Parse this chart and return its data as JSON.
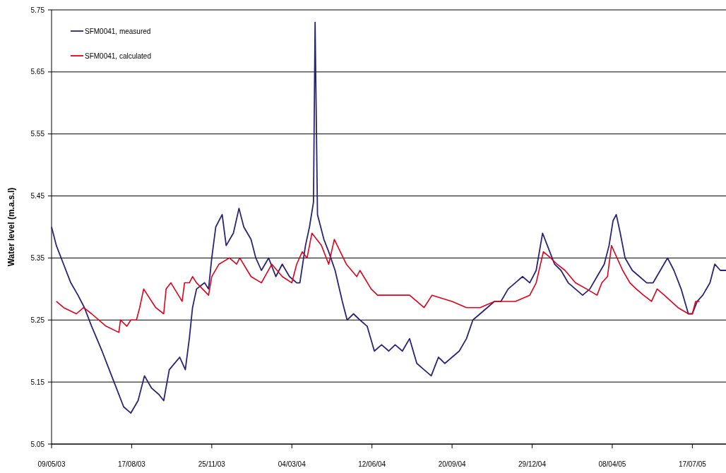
{
  "chart_data": {
    "type": "line",
    "ylabel": "Water level (m.a.s.l)",
    "xlim": [
      "2003-05-09",
      "2005-08-28"
    ],
    "xticks": [
      {
        "value": "2003-05-09",
        "label": "09/05/03"
      },
      {
        "value": "2003-08-17",
        "label": "17/08/03"
      },
      {
        "value": "2003-11-25",
        "label": "25/11/03"
      },
      {
        "value": "2004-03-04",
        "label": "04/03/04"
      },
      {
        "value": "2004-06-12",
        "label": "12/06/04"
      },
      {
        "value": "2004-09-20",
        "label": "20/09/04"
      },
      {
        "value": "2004-12-29",
        "label": "29/12/04"
      },
      {
        "value": "2005-04-08",
        "label": "08/04/05"
      },
      {
        "value": "2005-07-17",
        "label": "17/07/05"
      }
    ],
    "ylim": [
      5.05,
      5.75
    ],
    "yticks": [
      5.05,
      5.15,
      5.25,
      5.35,
      5.45,
      5.55,
      5.65,
      5.75
    ],
    "grid": "y",
    "legend": "top left",
    "marker": "none",
    "line_style": "solid",
    "series": [
      {
        "name": "SFM0041, measured",
        "color": "#2b2378",
        "x": [
          "2003-05-09",
          "2003-05-15",
          "2003-05-24",
          "2003-06-02",
          "2003-06-11",
          "2003-06-19",
          "2003-06-28",
          "2003-07-11",
          "2003-07-20",
          "2003-07-29",
          "2003-08-07",
          "2003-08-16",
          "2003-08-25",
          "2003-09-02",
          "2003-09-11",
          "2003-09-20",
          "2003-09-26",
          "2003-10-03",
          "2003-10-16",
          "2003-10-23",
          "2003-10-28",
          "2003-11-01",
          "2003-11-06",
          "2003-11-16",
          "2003-11-21",
          "2003-11-25",
          "2003-11-30",
          "2003-12-08",
          "2003-12-13",
          "2003-12-22",
          "2003-12-29",
          "2004-01-04",
          "2004-01-13",
          "2004-01-19",
          "2004-01-26",
          "2004-02-04",
          "2004-02-13",
          "2004-02-21",
          "2004-03-01",
          "2004-03-10",
          "2004-03-14",
          "2004-03-21",
          "2004-03-26",
          "2004-03-31",
          "2004-04-02",
          "2004-04-05",
          "2004-04-13",
          "2004-04-19",
          "2004-04-27",
          "2004-05-06",
          "2004-05-12",
          "2004-05-20",
          "2004-05-28",
          "2004-06-06",
          "2004-06-15",
          "2004-06-24",
          "2004-07-03",
          "2004-07-11",
          "2004-07-20",
          "2004-07-29",
          "2004-08-07",
          "2004-08-16",
          "2004-08-25",
          "2004-09-03",
          "2004-09-11",
          "2004-09-20",
          "2004-09-29",
          "2004-10-08",
          "2004-10-16",
          "2004-10-25",
          "2004-11-03",
          "2004-11-12",
          "2004-11-20",
          "2004-11-29",
          "2004-12-08",
          "2004-12-17",
          "2004-12-26",
          "2005-01-03",
          "2005-01-11",
          "2005-01-17",
          "2005-01-26",
          "2005-02-03",
          "2005-02-12",
          "2005-02-21",
          "2005-03-02",
          "2005-03-11",
          "2005-03-20",
          "2005-03-29",
          "2005-04-04",
          "2005-04-09",
          "2005-04-13",
          "2005-04-18",
          "2005-04-24",
          "2005-05-03",
          "2005-05-12",
          "2005-05-21",
          "2005-05-29",
          "2005-06-07",
          "2005-06-16",
          "2005-06-24",
          "2005-07-03",
          "2005-07-12",
          "2005-07-17",
          "2005-07-23",
          "2005-07-30",
          "2005-08-08",
          "2005-08-14",
          "2005-08-21",
          "2005-08-28"
        ],
        "values": [
          5.4,
          5.37,
          5.34,
          5.31,
          5.29,
          5.27,
          5.24,
          5.2,
          5.17,
          5.14,
          5.11,
          5.1,
          5.12,
          5.16,
          5.14,
          5.13,
          5.12,
          5.17,
          5.19,
          5.17,
          5.22,
          5.27,
          5.3,
          5.31,
          5.3,
          5.35,
          5.4,
          5.42,
          5.37,
          5.39,
          5.43,
          5.4,
          5.38,
          5.35,
          5.33,
          5.35,
          5.32,
          5.34,
          5.32,
          5.31,
          5.31,
          5.37,
          5.4,
          5.44,
          5.73,
          5.42,
          5.38,
          5.36,
          5.33,
          5.28,
          5.25,
          5.26,
          5.25,
          5.24,
          5.2,
          5.21,
          5.2,
          5.21,
          5.2,
          5.22,
          5.18,
          5.17,
          5.16,
          5.19,
          5.18,
          5.19,
          5.2,
          5.22,
          5.25,
          5.26,
          5.27,
          5.28,
          5.28,
          5.3,
          5.31,
          5.32,
          5.31,
          5.33,
          5.39,
          5.37,
          5.34,
          5.33,
          5.31,
          5.3,
          5.29,
          5.3,
          5.32,
          5.34,
          5.37,
          5.41,
          5.42,
          5.39,
          5.35,
          5.33,
          5.32,
          5.31,
          5.31,
          5.33,
          5.35,
          5.33,
          5.3,
          5.26,
          5.26,
          5.28,
          5.29,
          5.31,
          5.34,
          5.33,
          5.33
        ]
      },
      {
        "name": "SFM0041, calculated",
        "color": "#e3001b",
        "x": [
          "2003-05-15",
          "2003-05-24",
          "2003-06-09",
          "2003-06-18",
          "2003-06-28",
          "2003-07-16",
          "2003-08-01",
          "2003-08-03",
          "2003-08-11",
          "2003-08-16",
          "2003-08-23",
          "2003-08-27",
          "2003-09-01",
          "2003-09-16",
          "2003-09-26",
          "2003-09-29",
          "2003-10-05",
          "2003-10-19",
          "2003-10-22",
          "2003-10-28",
          "2003-11-01",
          "2003-11-06",
          "2003-11-21",
          "2003-11-25",
          "2003-12-04",
          "2003-12-17",
          "2003-12-26",
          "2003-12-30",
          "2004-01-13",
          "2004-01-26",
          "2004-02-08",
          "2004-02-21",
          "2004-03-04",
          "2004-03-10",
          "2004-03-17",
          "2004-03-23",
          "2004-03-29",
          "2004-04-10",
          "2004-04-19",
          "2004-04-26",
          "2004-05-11",
          "2004-05-24",
          "2004-05-28",
          "2004-06-11",
          "2004-06-19",
          "2004-07-11",
          "2004-07-29",
          "2004-08-16",
          "2004-08-26",
          "2004-09-20",
          "2004-10-08",
          "2004-10-25",
          "2004-11-12",
          "2004-12-08",
          "2004-12-26",
          "2005-01-03",
          "2005-01-12",
          "2005-01-21",
          "2005-01-29",
          "2005-02-08",
          "2005-02-21",
          "2005-03-07",
          "2005-03-20",
          "2005-03-26",
          "2005-04-02",
          "2005-04-07",
          "2005-04-21",
          "2005-04-30",
          "2005-05-08",
          "2005-05-17",
          "2005-05-27",
          "2005-06-03",
          "2005-06-12",
          "2005-06-29",
          "2005-07-12",
          "2005-07-17",
          "2005-07-21",
          "2005-07-26"
        ],
        "values": [
          5.28,
          5.27,
          5.26,
          5.27,
          5.26,
          5.24,
          5.23,
          5.25,
          5.24,
          5.25,
          5.25,
          5.27,
          5.3,
          5.27,
          5.26,
          5.3,
          5.31,
          5.28,
          5.31,
          5.31,
          5.32,
          5.31,
          5.29,
          5.32,
          5.34,
          5.35,
          5.34,
          5.35,
          5.32,
          5.31,
          5.34,
          5.32,
          5.31,
          5.34,
          5.36,
          5.35,
          5.39,
          5.37,
          5.34,
          5.38,
          5.34,
          5.32,
          5.33,
          5.3,
          5.29,
          5.29,
          5.29,
          5.27,
          5.29,
          5.28,
          5.27,
          5.27,
          5.28,
          5.28,
          5.29,
          5.31,
          5.36,
          5.35,
          5.34,
          5.33,
          5.31,
          5.3,
          5.29,
          5.31,
          5.32,
          5.37,
          5.33,
          5.31,
          5.3,
          5.29,
          5.28,
          5.3,
          5.29,
          5.27,
          5.26,
          5.26,
          5.28,
          5.28
        ]
      }
    ]
  }
}
